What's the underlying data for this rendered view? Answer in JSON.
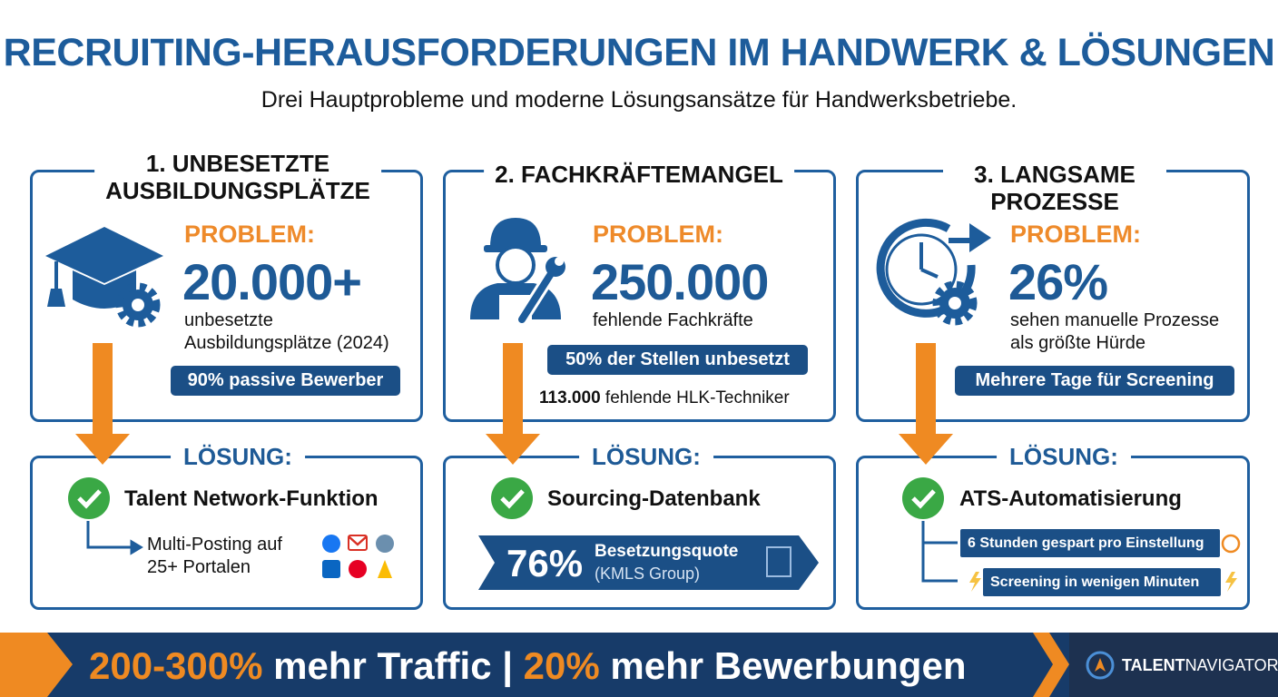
{
  "header": {
    "title": "RECRUITING-HERAUSFORDERUNGEN IM HANDWERK & LÖSUNGEN",
    "subtitle": "Drei Hauptprobleme und moderne Lösungsansätze für Handwerksbetriebe."
  },
  "columns": [
    {
      "title_lines": [
        "1. UNBESETZTE",
        "AUSBILDUNGSPLÄTZE"
      ],
      "problem_label": "PROBLEM:",
      "stat": "20.000+",
      "stat_lines": [
        "unbesetzte",
        "Ausbildungsplätze (2024)"
      ],
      "badge": "90% passive Bewerber",
      "solution_label": "LÖSUNG:",
      "solution": "Talent Network-Funktion",
      "detail_lines": [
        "Multi-Posting auf",
        "25+ Portalen"
      ]
    },
    {
      "title_lines": [
        "2. FACHKRÄFTEMANGEL"
      ],
      "problem_label": "PROBLEM:",
      "stat": "250.000",
      "stat_lines": [
        "fehlende Fachkräfte"
      ],
      "badge": "50% der Stellen unbesetzt",
      "note_value": "113.000",
      "note_text": "fehlende HLK-Techniker",
      "solution_label": "LÖSUNG:",
      "solution": "Sourcing-Datenbank",
      "banner_stat": "76%",
      "banner_label": "Besetzungsquote",
      "banner_source": "(KMLS Group)"
    },
    {
      "title_lines": [
        "3. LANGSAME PROZESSE"
      ],
      "problem_label": "PROBLEM:",
      "stat": "26%",
      "stat_lines": [
        "sehen manuelle Prozesse",
        "als größte Hürde"
      ],
      "badge": "Mehrere Tage für Screening",
      "solution_label": "LÖSUNG:",
      "solution": "ATS-Automatisierung",
      "items": [
        "6 Stunden gespart pro Einstellung",
        "Screening in wenigen Minuten"
      ]
    }
  ],
  "footer": {
    "highlight_1": "200-300%",
    "text_1": "mehr Traffic |",
    "highlight_2": "20%",
    "text_2": "mehr Bewerbungen",
    "logo_bold": "TALENT",
    "logo_rest": "NAVIGATOR"
  }
}
